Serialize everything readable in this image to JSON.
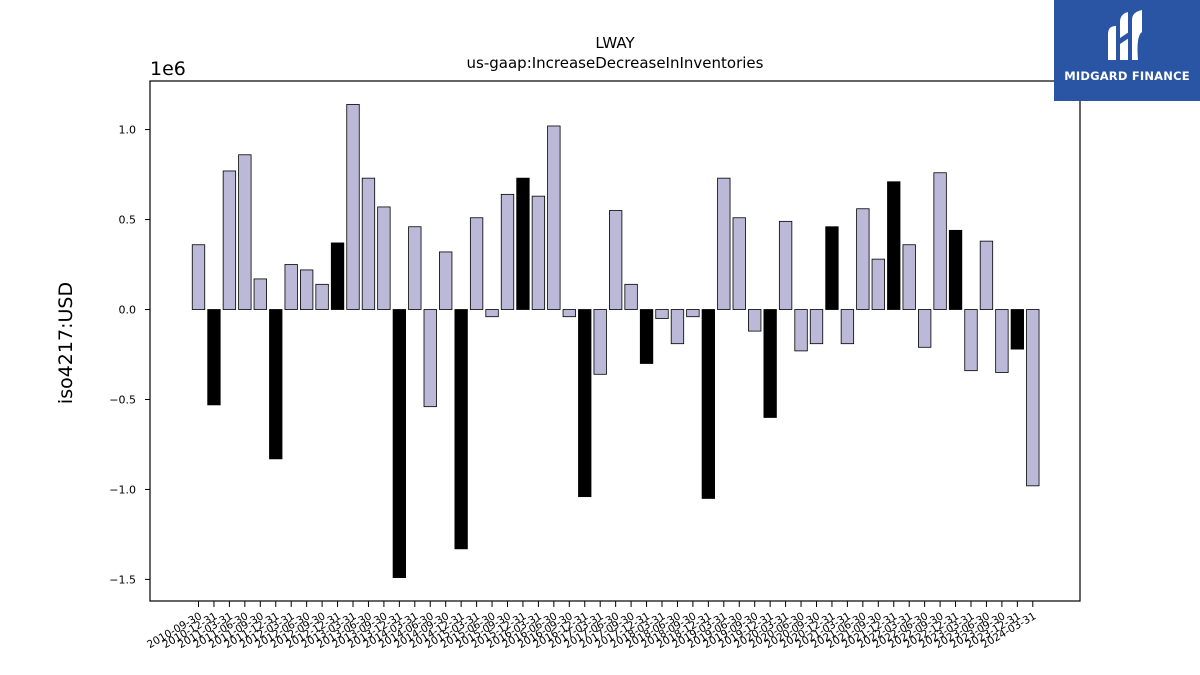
{
  "brand": {
    "name": "MIDGARD FINANCE",
    "bg_color": "#2a55a5"
  },
  "chart_data": {
    "type": "bar",
    "title": "LWAY",
    "subtitle": "us-gaap:IncreaseDecreaseInInventories",
    "xlabel": "",
    "ylabel": "iso4217:USD",
    "y_scale_label": "1e6",
    "ylim": [
      -1.62,
      1.27
    ],
    "yticks": [
      -1.5,
      -1.0,
      -0.5,
      0.0,
      0.5,
      1.0
    ],
    "ytick_labels": [
      "−1.5",
      "−1.0",
      "−0.5",
      "0.0",
      "0.5",
      "1.0"
    ],
    "grid": false,
    "legend": "none",
    "colors": {
      "primary": "#bcb8d8",
      "highlight": "#000000",
      "edge": "#000000"
    },
    "categories": [
      "2010-09-30",
      "2010-12-31",
      "2011-03-31",
      "2011-06-30",
      "2011-09-30",
      "2011-12-31",
      "2012-03-31",
      "2012-06-30",
      "2012-09-30",
      "2012-12-31",
      "2013-03-31",
      "2013-06-30",
      "2013-09-30",
      "2013-12-31",
      "2014-03-31",
      "2014-06-30",
      "2014-09-30",
      "2014-12-31",
      "2015-03-31",
      "2015-06-30",
      "2015-09-30",
      "2015-12-31",
      "2016-03-31",
      "2016-06-30",
      "2016-09-30",
      "2016-12-31",
      "2017-03-31",
      "2017-06-30",
      "2017-09-30",
      "2017-12-31",
      "2018-03-31",
      "2018-06-30",
      "2018-09-30",
      "2018-12-31",
      "2019-03-31",
      "2019-06-30",
      "2019-09-30",
      "2019-12-31",
      "2020-03-31",
      "2020-06-30",
      "2020-09-30",
      "2020-12-31",
      "2021-03-31",
      "2021-06-30",
      "2021-09-30",
      "2021-12-31",
      "2022-03-31",
      "2022-06-30",
      "2022-09-30",
      "2022-12-31",
      "2023-03-31",
      "2023-06-30",
      "2023-09-30",
      "2023-12-31",
      "2024-03-31"
    ],
    "values": [
      0.36,
      -0.53,
      0.77,
      0.86,
      0.17,
      -0.83,
      0.25,
      0.22,
      0.14,
      0.37,
      1.14,
      0.73,
      0.57,
      -1.49,
      0.46,
      -0.54,
      0.32,
      -1.33,
      0.51,
      -0.04,
      0.64,
      0.73,
      0.63,
      1.02,
      -0.04,
      -1.04,
      -0.36,
      0.55,
      0.14,
      -0.3,
      -0.05,
      -0.19,
      -0.04,
      -1.05,
      0.73,
      0.51,
      -0.12,
      -0.6,
      0.49,
      -0.23,
      -0.19,
      0.46,
      -0.19,
      0.56,
      0.28,
      0.71,
      0.36,
      -0.21,
      0.76,
      0.44,
      -0.34,
      0.38,
      -0.35,
      -0.22,
      -0.98
    ],
    "highlight": [
      false,
      true,
      false,
      false,
      false,
      true,
      false,
      false,
      false,
      true,
      false,
      false,
      false,
      true,
      false,
      false,
      false,
      true,
      false,
      false,
      false,
      true,
      false,
      false,
      false,
      true,
      false,
      false,
      false,
      true,
      false,
      false,
      false,
      true,
      false,
      false,
      false,
      true,
      false,
      false,
      false,
      true,
      false,
      false,
      false,
      true,
      false,
      false,
      false,
      true,
      false,
      false,
      false,
      true,
      false
    ]
  }
}
